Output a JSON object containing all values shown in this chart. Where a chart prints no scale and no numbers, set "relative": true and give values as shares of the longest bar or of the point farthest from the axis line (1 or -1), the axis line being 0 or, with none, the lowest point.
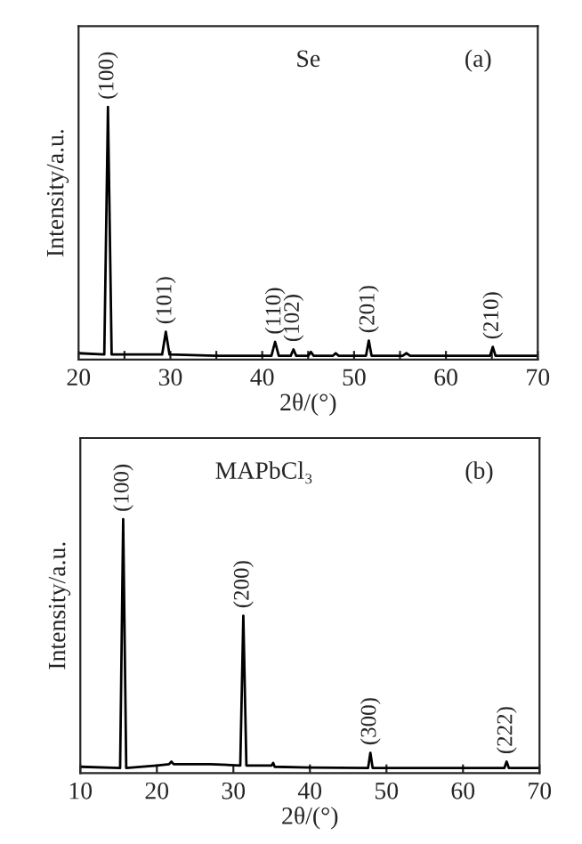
{
  "chart_data": [
    {
      "type": "line",
      "title": "Se",
      "xlabel": "2θ/(°)",
      "ylabel": "Intensity/a.u.",
      "relative": true,
      "tick_labels": "x",
      "xlim": [
        20,
        70
      ],
      "xticks": [
        20,
        {
          "value": 25,
          "label": null
        },
        30,
        {
          "value": 35,
          "label": null
        },
        40,
        {
          "value": 45,
          "label": null
        },
        50,
        {
          "value": 55,
          "label": null
        },
        60,
        {
          "value": 65,
          "label": null
        },
        70
      ],
      "series": [
        {
          "color": "#000000",
          "x": [
            20,
            22.8,
            23.2,
            23.6,
            29.1,
            29.5,
            29.9,
            35,
            41.0,
            41.4,
            41.8,
            43.1,
            43.4,
            43.7,
            45.0,
            45.3,
            45.6,
            47.7,
            48.0,
            48.3,
            51.3,
            51.6,
            51.9,
            55.3,
            55.7,
            56.1,
            61,
            64.8,
            65.1,
            65.4,
            70
          ],
          "values": [
            0.025,
            0.02,
            1,
            0.02,
            0.02,
            0.11,
            0.02,
            0.015,
            0.015,
            0.07,
            0.015,
            0.015,
            0.04,
            0.015,
            0.015,
            0.03,
            0.015,
            0.015,
            0.025,
            0.015,
            0.015,
            0.075,
            0.015,
            0.015,
            0.025,
            0.015,
            0.015,
            0.015,
            0.05,
            0.015,
            0.015
          ]
        }
      ],
      "annotations": [
        "(a)",
        {
          "text": "(100)",
          "x": 23.2,
          "y": 1
        },
        {
          "text": "(101)",
          "x": 29.5,
          "y": 0.11
        },
        {
          "text": "(110)",
          "x": 41.4,
          "y": 0.07
        },
        {
          "text": "(102)",
          "x": 43.4,
          "y": 0.04
        },
        {
          "text": "(201)",
          "x": 51.6,
          "y": 0.075
        },
        {
          "text": "(210)",
          "x": 65.1,
          "y": 0.05
        }
      ]
    },
    {
      "type": "line",
      "title": "MAPbCl₃",
      "xlabel": "2θ/(°)",
      "ylabel": "Intensity/a.u.",
      "relative": true,
      "tick_labels": "x",
      "xlim": [
        10,
        70
      ],
      "xticks": [
        10,
        20,
        30,
        40,
        50,
        60,
        70
      ],
      "series": [
        {
          "color": "#000000",
          "x": [
            10,
            15.2,
            15.6,
            16.0,
            20,
            21.6,
            21.9,
            22.2,
            27,
            30.9,
            31.3,
            31.7,
            35.0,
            35.2,
            35.4,
            40,
            47.6,
            47.9,
            48.2,
            55,
            65.4,
            65.7,
            66.0,
            70
          ],
          "values": [
            0.025,
            0.02,
            1,
            0.02,
            0.03,
            0.035,
            0.045,
            0.035,
            0.035,
            0.03,
            0.62,
            0.03,
            0.03,
            0.04,
            0.025,
            0.022,
            0.02,
            0.08,
            0.02,
            0.02,
            0.02,
            0.045,
            0.02,
            0.02
          ]
        }
      ],
      "annotations": [
        "(b)",
        {
          "text": "(100)",
          "x": 15.6,
          "y": 1
        },
        {
          "text": "(200)",
          "x": 31.3,
          "y": 0.62
        },
        {
          "text": "(300)",
          "x": 47.9,
          "y": 0.08
        },
        {
          "text": "(222)",
          "x": 65.7,
          "y": 0.045
        }
      ]
    }
  ]
}
